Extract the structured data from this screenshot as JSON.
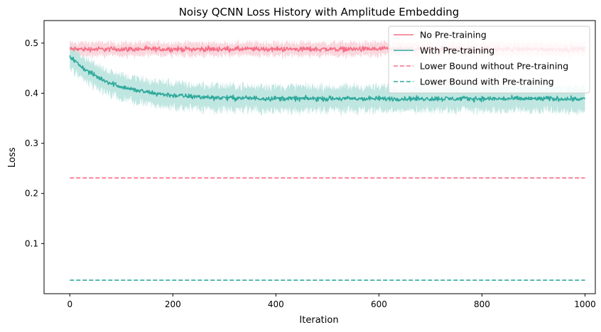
{
  "chart_data": {
    "type": "line",
    "title": "Noisy QCNN Loss History with Amplitude Embedding",
    "xlabel": "Iteration",
    "ylabel": "Loss",
    "xlim": [
      -50,
      1020
    ],
    "ylim": [
      0.0,
      0.545
    ],
    "xticks": [
      0,
      200,
      400,
      600,
      800,
      1000
    ],
    "yticks": [
      0.1,
      0.2,
      0.3,
      0.4,
      0.5
    ],
    "grid": false,
    "legend_position": "top-right",
    "iterations": [
      0,
      1000
    ],
    "series": [
      {
        "name": "No Pre-training",
        "style": "solid",
        "color": "#f76e86",
        "band_color": "#fad1d9",
        "mean_start": 0.488,
        "mean_end": 0.488,
        "band_halfwidth": 0.015
      },
      {
        "name": "With Pre-training",
        "style": "solid",
        "color": "#2ea99c",
        "band_color": "#b9e3de",
        "mean_start": 0.474,
        "mean_plateau": 0.389,
        "decay_constant": 80,
        "band_halfwidth": 0.028
      },
      {
        "name": "Lower Bound without Pre-training",
        "style": "dashed",
        "color": "#f76e86",
        "value": 0.231
      },
      {
        "name": "Lower Bound with Pre-training",
        "style": "dashed",
        "color": "#2ea99c",
        "value": 0.027
      }
    ]
  }
}
